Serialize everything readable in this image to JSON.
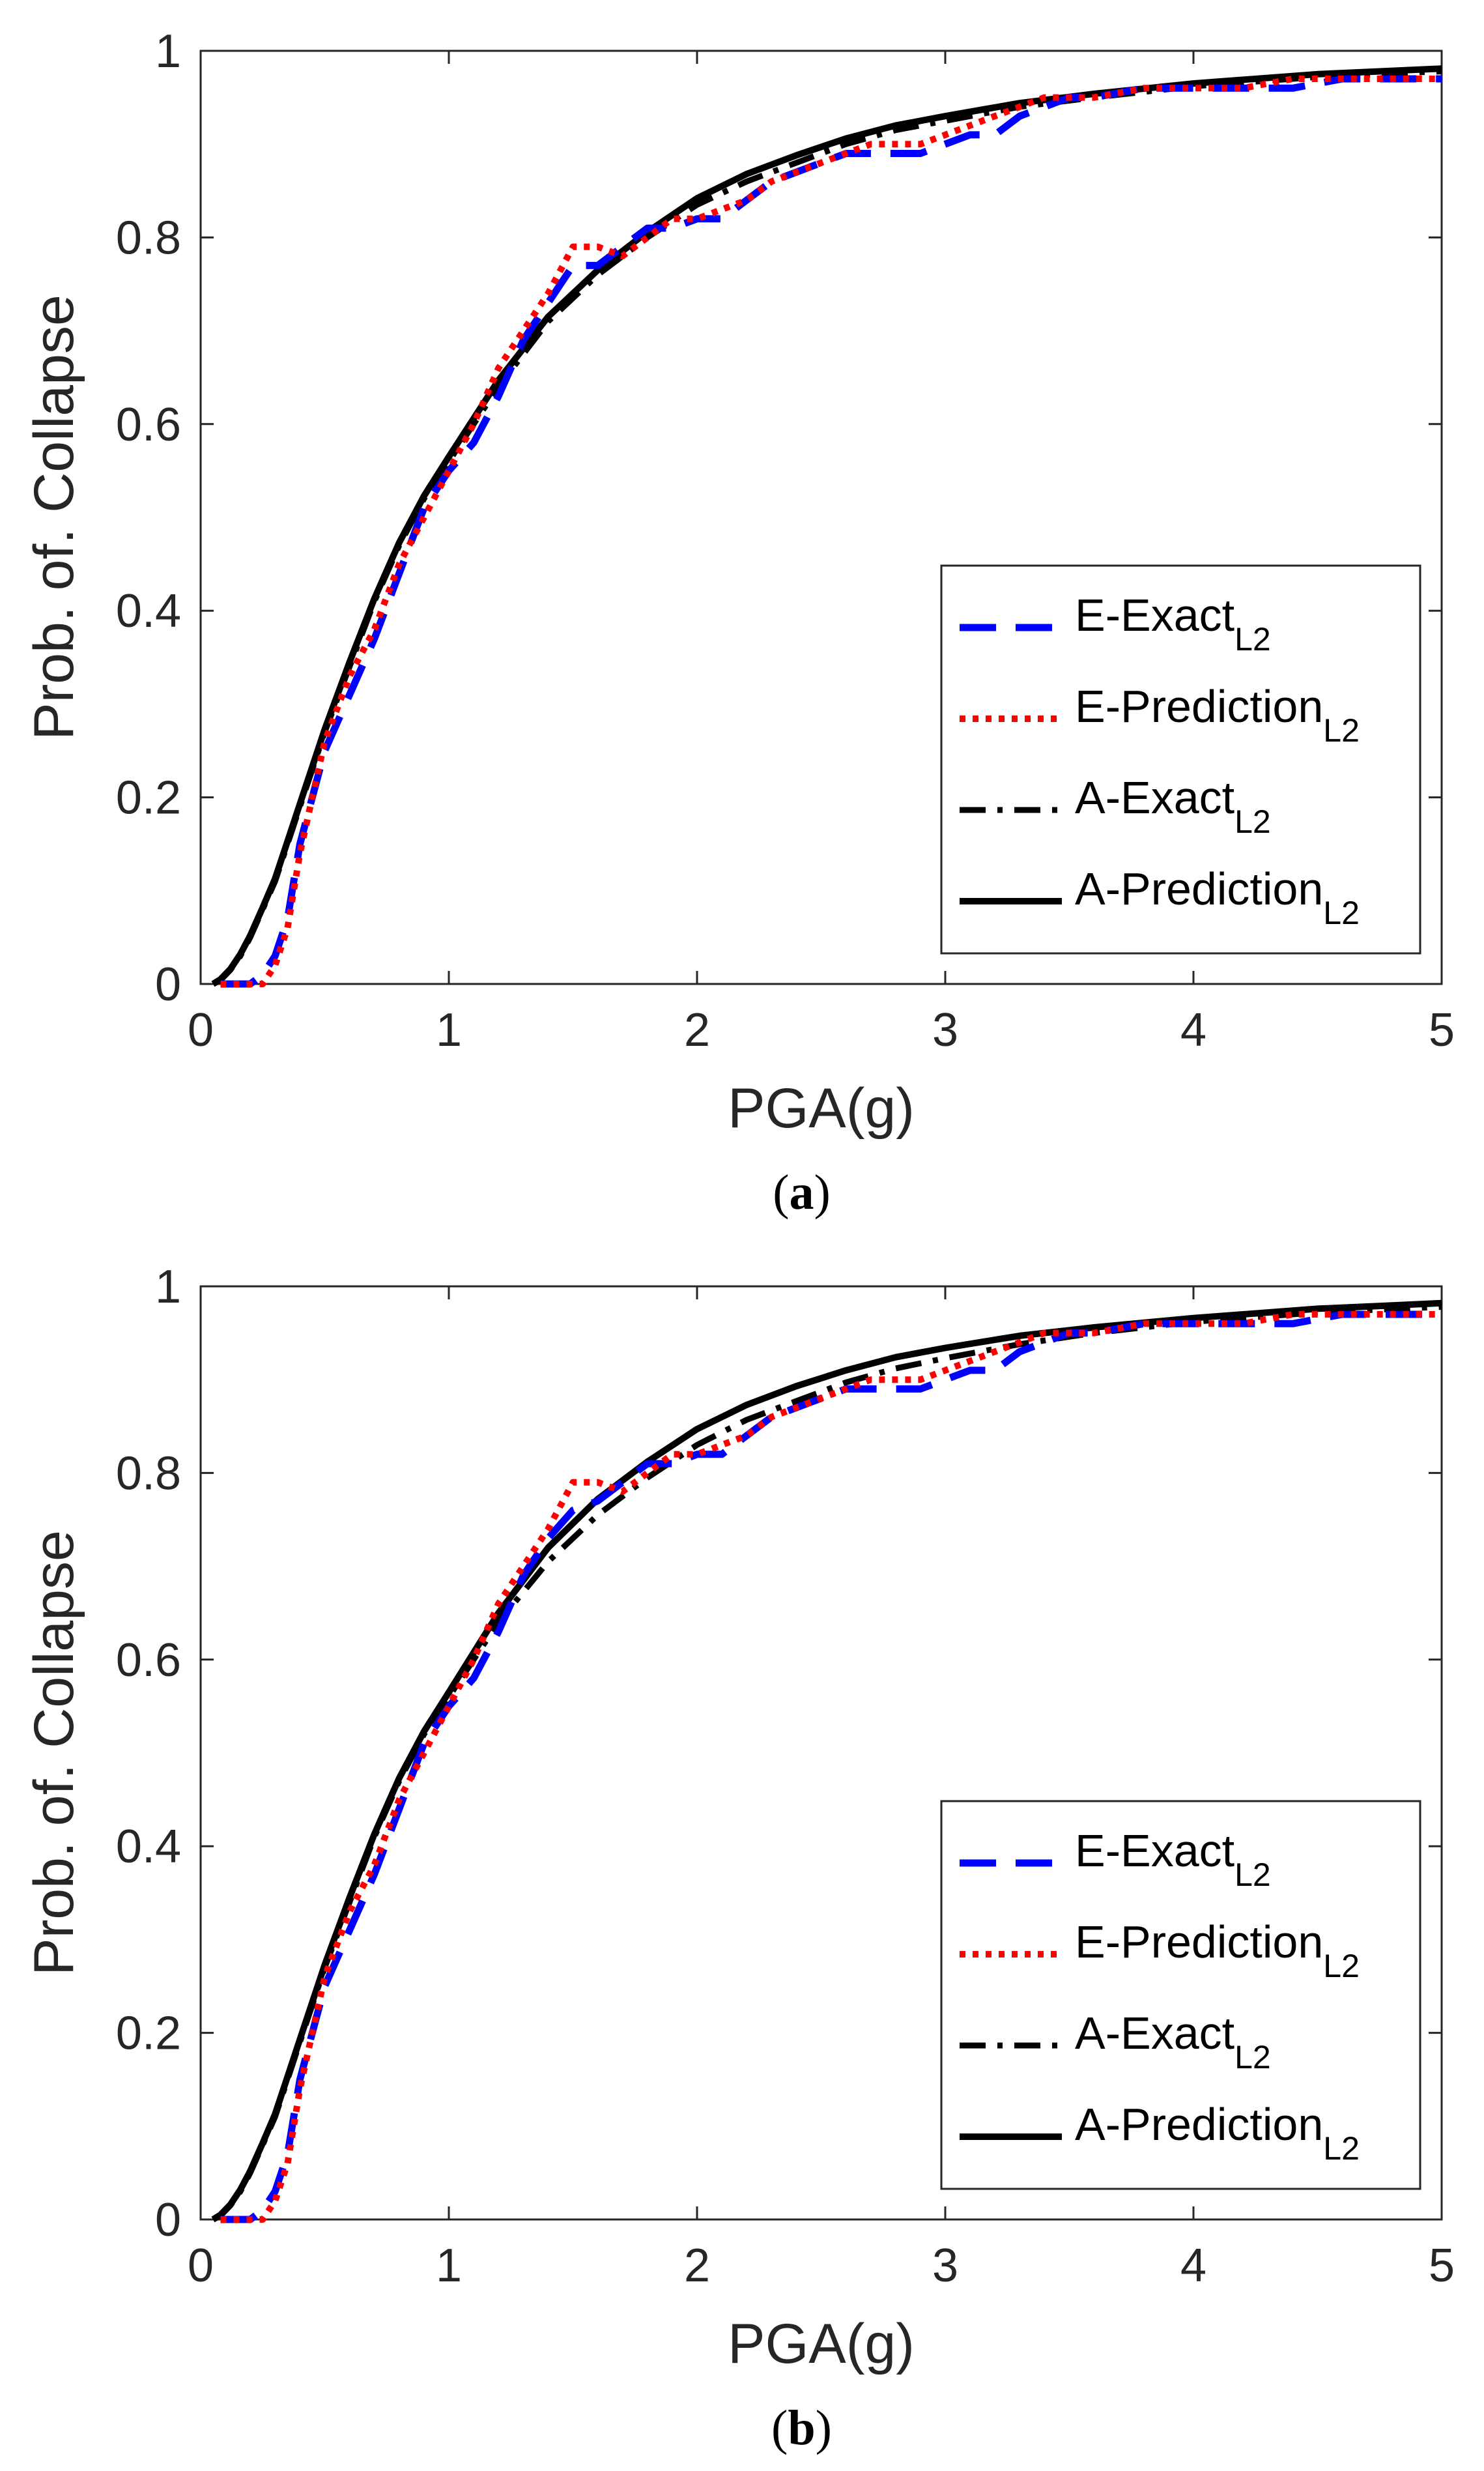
{
  "chart_data": [
    {
      "type": "line",
      "panel_label": "a",
      "xlabel": "PGA(g)",
      "ylabel": "Prob. of. Collapse",
      "xlim": [
        0,
        5
      ],
      "ylim": [
        0,
        1
      ],
      "xticks": [
        "0",
        "1",
        "2",
        "3",
        "4",
        "5"
      ],
      "yticks": [
        "0",
        "0.2",
        "0.4",
        "0.6",
        "0.8",
        "1"
      ],
      "legend_position": "lower-right",
      "series": [
        {
          "name": "E-Exact",
          "subscript": "L2",
          "color": "#0000ff",
          "style": "dashed",
          "x": [
            0.08,
            0.15,
            0.2,
            0.25,
            0.3,
            0.35,
            0.4,
            0.45,
            0.5,
            0.6,
            0.7,
            0.8,
            0.9,
            1.0,
            1.1,
            1.2,
            1.3,
            1.4,
            1.5,
            1.6,
            1.7,
            1.8,
            1.9,
            2.0,
            2.1,
            2.2,
            2.3,
            2.4,
            2.5,
            2.6,
            2.7,
            2.8,
            2.9,
            3.0,
            3.1,
            3.2,
            3.3,
            3.4,
            3.5,
            3.6,
            3.8,
            4.0,
            4.2,
            4.4,
            4.6,
            4.8,
            5.0
          ],
          "values": [
            0.0,
            0.0,
            0.0,
            0.01,
            0.03,
            0.07,
            0.15,
            0.2,
            0.25,
            0.31,
            0.37,
            0.44,
            0.51,
            0.55,
            0.58,
            0.63,
            0.69,
            0.73,
            0.77,
            0.77,
            0.79,
            0.81,
            0.81,
            0.82,
            0.82,
            0.84,
            0.86,
            0.87,
            0.88,
            0.89,
            0.89,
            0.89,
            0.89,
            0.9,
            0.91,
            0.91,
            0.93,
            0.94,
            0.95,
            0.95,
            0.96,
            0.96,
            0.96,
            0.96,
            0.97,
            0.97,
            0.97
          ]
        },
        {
          "name": "E-Prediction",
          "subscript": "L2",
          "color": "#ff0000",
          "style": "dotted",
          "x": [
            0.08,
            0.15,
            0.2,
            0.25,
            0.3,
            0.35,
            0.4,
            0.45,
            0.5,
            0.6,
            0.7,
            0.8,
            0.9,
            1.0,
            1.1,
            1.2,
            1.3,
            1.4,
            1.5,
            1.6,
            1.7,
            1.8,
            1.9,
            2.0,
            2.1,
            2.2,
            2.3,
            2.4,
            2.5,
            2.6,
            2.7,
            2.8,
            2.9,
            3.0,
            3.1,
            3.2,
            3.3,
            3.4,
            3.5,
            3.6,
            3.8,
            4.0,
            4.2,
            4.4,
            4.6,
            4.8,
            5.0
          ],
          "values": [
            0.0,
            0.0,
            0.0,
            0.0,
            0.02,
            0.06,
            0.14,
            0.2,
            0.26,
            0.33,
            0.38,
            0.45,
            0.5,
            0.55,
            0.6,
            0.66,
            0.7,
            0.74,
            0.79,
            0.79,
            0.78,
            0.8,
            0.82,
            0.82,
            0.83,
            0.84,
            0.86,
            0.87,
            0.88,
            0.89,
            0.9,
            0.9,
            0.9,
            0.91,
            0.92,
            0.93,
            0.94,
            0.95,
            0.95,
            0.95,
            0.96,
            0.96,
            0.96,
            0.97,
            0.97,
            0.97,
            0.97
          ]
        },
        {
          "name": "A-Exact",
          "subscript": "L2",
          "color": "#000000",
          "style": "dashdot",
          "x": [
            0.05,
            0.08,
            0.12,
            0.16,
            0.2,
            0.25,
            0.3,
            0.35,
            0.4,
            0.5,
            0.6,
            0.7,
            0.8,
            0.9,
            1.0,
            1.2,
            1.4,
            1.6,
            1.8,
            2.0,
            2.2,
            2.4,
            2.6,
            2.8,
            3.0,
            3.3,
            3.6,
            4.0,
            4.5,
            5.0
          ],
          "values": [
            0.0,
            0.004,
            0.015,
            0.03,
            0.05,
            0.08,
            0.11,
            0.15,
            0.19,
            0.27,
            0.34,
            0.41,
            0.47,
            0.52,
            0.56,
            0.64,
            0.71,
            0.76,
            0.8,
            0.835,
            0.86,
            0.88,
            0.9,
            0.915,
            0.925,
            0.94,
            0.95,
            0.962,
            0.972,
            0.978
          ]
        },
        {
          "name": "A-Prediction",
          "subscript": "L2",
          "color": "#000000",
          "style": "solid",
          "x": [
            0.05,
            0.08,
            0.12,
            0.16,
            0.2,
            0.25,
            0.3,
            0.35,
            0.4,
            0.5,
            0.6,
            0.7,
            0.8,
            0.9,
            1.0,
            1.2,
            1.4,
            1.6,
            1.8,
            2.0,
            2.2,
            2.4,
            2.6,
            2.8,
            3.0,
            3.3,
            3.6,
            4.0,
            4.5,
            5.0
          ],
          "values": [
            0.0,
            0.005,
            0.016,
            0.032,
            0.052,
            0.082,
            0.113,
            0.153,
            0.193,
            0.273,
            0.345,
            0.413,
            0.473,
            0.523,
            0.565,
            0.647,
            0.715,
            0.765,
            0.806,
            0.842,
            0.868,
            0.888,
            0.906,
            0.92,
            0.93,
            0.944,
            0.954,
            0.965,
            0.975,
            0.981
          ]
        }
      ]
    },
    {
      "type": "line",
      "panel_label": "b",
      "xlabel": "PGA(g)",
      "ylabel": "Prob. of. Collapse",
      "xlim": [
        0,
        5
      ],
      "ylim": [
        0,
        1
      ],
      "xticks": [
        "0",
        "1",
        "2",
        "3",
        "4",
        "5"
      ],
      "yticks": [
        "0",
        "0.2",
        "0.4",
        "0.6",
        "0.8",
        "1"
      ],
      "legend_position": "lower-right",
      "series": [
        {
          "name": "E-Exact",
          "subscript": "L2",
          "color": "#0000ff",
          "style": "dashed",
          "x": [
            0.08,
            0.15,
            0.2,
            0.25,
            0.3,
            0.35,
            0.4,
            0.45,
            0.5,
            0.6,
            0.7,
            0.8,
            0.9,
            1.0,
            1.1,
            1.2,
            1.3,
            1.4,
            1.5,
            1.6,
            1.7,
            1.8,
            1.9,
            2.0,
            2.1,
            2.2,
            2.3,
            2.4,
            2.5,
            2.6,
            2.7,
            2.8,
            2.9,
            3.0,
            3.1,
            3.2,
            3.3,
            3.4,
            3.5,
            3.6,
            3.8,
            4.0,
            4.2,
            4.4,
            4.6,
            4.8,
            5.0
          ],
          "values": [
            0.0,
            0.0,
            0.0,
            0.01,
            0.03,
            0.07,
            0.15,
            0.2,
            0.25,
            0.31,
            0.37,
            0.44,
            0.51,
            0.55,
            0.58,
            0.63,
            0.69,
            0.73,
            0.76,
            0.77,
            0.79,
            0.81,
            0.81,
            0.82,
            0.82,
            0.84,
            0.86,
            0.87,
            0.88,
            0.89,
            0.89,
            0.89,
            0.89,
            0.9,
            0.91,
            0.91,
            0.93,
            0.94,
            0.95,
            0.95,
            0.96,
            0.96,
            0.96,
            0.96,
            0.97,
            0.97,
            0.97
          ]
        },
        {
          "name": "E-Prediction",
          "subscript": "L2",
          "color": "#ff0000",
          "style": "dotted",
          "x": [
            0.08,
            0.15,
            0.2,
            0.25,
            0.3,
            0.35,
            0.4,
            0.45,
            0.5,
            0.6,
            0.7,
            0.8,
            0.9,
            1.0,
            1.1,
            1.2,
            1.3,
            1.4,
            1.5,
            1.6,
            1.7,
            1.8,
            1.9,
            2.0,
            2.1,
            2.2,
            2.3,
            2.4,
            2.5,
            2.6,
            2.7,
            2.8,
            2.9,
            3.0,
            3.1,
            3.2,
            3.3,
            3.4,
            3.5,
            3.6,
            3.8,
            4.0,
            4.2,
            4.4,
            4.6,
            4.8,
            5.0
          ],
          "values": [
            0.0,
            0.0,
            0.0,
            0.0,
            0.02,
            0.06,
            0.14,
            0.2,
            0.26,
            0.33,
            0.38,
            0.45,
            0.5,
            0.55,
            0.6,
            0.66,
            0.7,
            0.74,
            0.79,
            0.79,
            0.78,
            0.8,
            0.82,
            0.82,
            0.83,
            0.84,
            0.86,
            0.87,
            0.88,
            0.89,
            0.9,
            0.9,
            0.9,
            0.91,
            0.92,
            0.93,
            0.94,
            0.95,
            0.95,
            0.95,
            0.96,
            0.96,
            0.96,
            0.97,
            0.97,
            0.97,
            0.97
          ]
        },
        {
          "name": "A-Exact",
          "subscript": "L2",
          "color": "#000000",
          "style": "dashdot",
          "x": [
            0.05,
            0.08,
            0.12,
            0.16,
            0.2,
            0.25,
            0.3,
            0.35,
            0.4,
            0.5,
            0.6,
            0.7,
            0.8,
            0.9,
            1.0,
            1.2,
            1.4,
            1.6,
            1.8,
            2.0,
            2.2,
            2.4,
            2.6,
            2.8,
            3.0,
            3.3,
            3.6,
            4.0,
            4.5,
            5.0
          ],
          "values": [
            0.0,
            0.004,
            0.015,
            0.03,
            0.05,
            0.08,
            0.11,
            0.15,
            0.19,
            0.27,
            0.34,
            0.41,
            0.47,
            0.52,
            0.56,
            0.64,
            0.705,
            0.755,
            0.795,
            0.83,
            0.857,
            0.877,
            0.897,
            0.912,
            0.923,
            0.938,
            0.95,
            0.962,
            0.972,
            0.978
          ]
        },
        {
          "name": "A-Prediction",
          "subscript": "L2",
          "color": "#000000",
          "style": "solid",
          "x": [
            0.05,
            0.08,
            0.12,
            0.16,
            0.2,
            0.25,
            0.3,
            0.35,
            0.4,
            0.5,
            0.6,
            0.7,
            0.8,
            0.9,
            1.0,
            1.2,
            1.4,
            1.6,
            1.8,
            2.0,
            2.2,
            2.4,
            2.6,
            2.8,
            3.0,
            3.3,
            3.6,
            4.0,
            4.5,
            5.0
          ],
          "values": [
            0.0,
            0.005,
            0.016,
            0.032,
            0.052,
            0.082,
            0.113,
            0.153,
            0.193,
            0.273,
            0.345,
            0.413,
            0.473,
            0.523,
            0.565,
            0.65,
            0.72,
            0.772,
            0.812,
            0.847,
            0.873,
            0.893,
            0.91,
            0.924,
            0.934,
            0.947,
            0.956,
            0.966,
            0.976,
            0.982
          ]
        }
      ]
    }
  ]
}
